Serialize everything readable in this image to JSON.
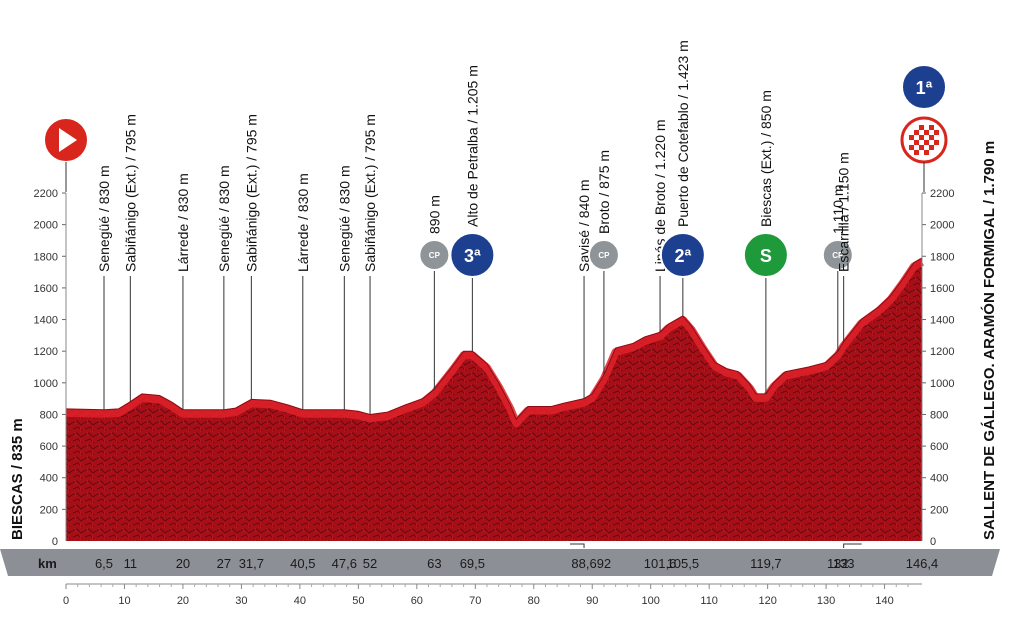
{
  "chart_data": {
    "type": "area",
    "start_label": "BIESCAS / 835 m",
    "finish_label": "SALLENT DE GÁLLEGO. ARAMÓN FORMIGAL / 1.790 m",
    "km_label": "km",
    "ylim": [
      0,
      2200
    ],
    "xlim": [
      0,
      146.4
    ],
    "y_ticks": [
      "200",
      "400",
      "600",
      "800",
      "1000",
      "1200",
      "1400",
      "1600",
      "1800",
      "2000",
      "2200"
    ],
    "x_ticks": [
      "0",
      "10",
      "20",
      "30",
      "40",
      "50",
      "60",
      "70",
      "80",
      "90",
      "100",
      "110",
      "120",
      "130",
      "140"
    ],
    "km_markers": [
      "6,5",
      "11",
      "20",
      "27",
      "31,7",
      "40,5",
      "47,6",
      "52",
      "63",
      "69,5",
      "88,6",
      "92",
      "101,6",
      "105,5",
      "119,7",
      "132",
      "133",
      "146,4"
    ],
    "profile": [
      [
        0,
        835
      ],
      [
        6.5,
        830
      ],
      [
        9,
        835
      ],
      [
        11,
        880
      ],
      [
        13,
        930
      ],
      [
        16,
        920
      ],
      [
        18,
        880
      ],
      [
        20,
        830
      ],
      [
        24,
        830
      ],
      [
        27,
        830
      ],
      [
        29,
        840
      ],
      [
        31.7,
        895
      ],
      [
        35,
        890
      ],
      [
        38,
        860
      ],
      [
        40.5,
        830
      ],
      [
        44,
        830
      ],
      [
        47.6,
        830
      ],
      [
        50,
        820
      ],
      [
        52,
        800
      ],
      [
        55,
        815
      ],
      [
        58,
        860
      ],
      [
        61,
        900
      ],
      [
        63,
        960
      ],
      [
        66,
        1100
      ],
      [
        68,
        1200
      ],
      [
        69.5,
        1200
      ],
      [
        72,
        1120
      ],
      [
        74,
        1000
      ],
      [
        76,
        860
      ],
      [
        77,
        770
      ],
      [
        79,
        850
      ],
      [
        83,
        850
      ],
      [
        85,
        870
      ],
      [
        88.6,
        900
      ],
      [
        90,
        930
      ],
      [
        92,
        1050
      ],
      [
        94,
        1220
      ],
      [
        97,
        1250
      ],
      [
        99,
        1290
      ],
      [
        101.6,
        1320
      ],
      [
        103,
        1370
      ],
      [
        105.5,
        1423
      ],
      [
        107,
        1360
      ],
      [
        109,
        1240
      ],
      [
        111,
        1130
      ],
      [
        113,
        1090
      ],
      [
        115,
        1070
      ],
      [
        117,
        990
      ],
      [
        118,
        930
      ],
      [
        119.7,
        930
      ],
      [
        121,
        1000
      ],
      [
        123,
        1070
      ],
      [
        127,
        1100
      ],
      [
        130,
        1130
      ],
      [
        132,
        1200
      ],
      [
        133,
        1260
      ],
      [
        136,
        1400
      ],
      [
        139,
        1480
      ],
      [
        141,
        1550
      ],
      [
        143,
        1650
      ],
      [
        145,
        1760
      ],
      [
        146.4,
        1790
      ]
    ],
    "annotations": [
      {
        "km": 6.5,
        "text": "Senegüé / 830 m",
        "type": "line"
      },
      {
        "km": 11,
        "text": "Sabiñánigo (Ext.) / 795 m",
        "type": "line"
      },
      {
        "km": 20,
        "text": "Lárrede / 830 m",
        "type": "line"
      },
      {
        "km": 27,
        "text": "Senegüé / 830 m",
        "type": "line"
      },
      {
        "km": 31.7,
        "text": "Sabiñánigo (Ext.) / 795 m",
        "type": "line"
      },
      {
        "km": 40.5,
        "text": "Lárrede / 830 m",
        "type": "line"
      },
      {
        "km": 47.6,
        "text": "Senegüé / 830 m",
        "type": "line"
      },
      {
        "km": 52,
        "text": "Sabiñánigo (Ext.) / 795 m",
        "type": "line"
      },
      {
        "km": 63,
        "text": "890 m",
        "type": "cp",
        "badge": "CP"
      },
      {
        "km": 69.5,
        "text": "Alto de Petralba / 1.205 m",
        "type": "kom",
        "badge": "3ª"
      },
      {
        "km": 88.6,
        "text": "Savisé / 840 m",
        "type": "line"
      },
      {
        "km": 92,
        "text": "Broto / 875 m",
        "type": "cp",
        "badge": "CP"
      },
      {
        "km": 101.6,
        "text": "Linás de Broto / 1.220 m",
        "type": "line"
      },
      {
        "km": 105.5,
        "text": "Puerto de Cotefablo / 1.423 m",
        "type": "kom",
        "badge": "2ª"
      },
      {
        "km": 119.7,
        "text": "Biescas (Ext.) / 850 m",
        "type": "sprint",
        "badge": "S"
      },
      {
        "km": 132,
        "text": "1.110 m",
        "type": "cp",
        "badge": "CP"
      },
      {
        "km": 133,
        "text": "Escarrilla / 1.150 m",
        "type": "line"
      }
    ],
    "finish_badge": "1ª",
    "colors": {
      "fill": "#b3121a",
      "ridge": "#e0212a",
      "bar": "#8c9096",
      "kom": "#1d3f8f",
      "sprint": "#1f9a3a",
      "cp": "#8f9499",
      "start": "#d9261c"
    }
  }
}
